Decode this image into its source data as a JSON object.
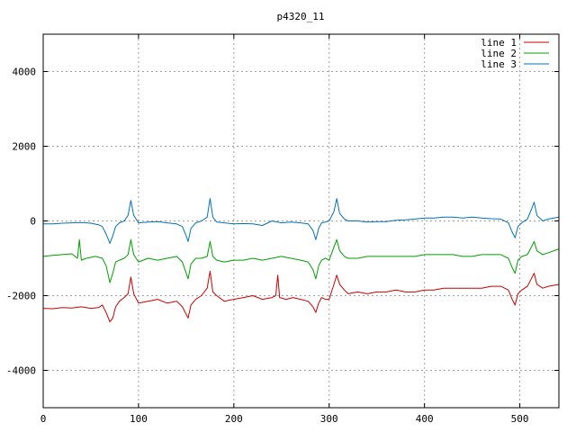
{
  "chart_data": {
    "type": "line",
    "title": "p4320_11",
    "xlabel": "",
    "ylabel": "",
    "xlim": [
      0,
      541
    ],
    "ylim": [
      -5000,
      5000
    ],
    "x_ticks": [
      0,
      100,
      200,
      300,
      400,
      500
    ],
    "y_ticks": [
      -4000,
      -2000,
      0,
      2000,
      4000
    ],
    "grid": true,
    "legend_position": "top-right",
    "series": [
      {
        "name": "line 1",
        "color": "#cc0000",
        "points": [
          [
            0,
            -2340
          ],
          [
            10,
            -2350
          ],
          [
            20,
            -2320
          ],
          [
            30,
            -2330
          ],
          [
            40,
            -2300
          ],
          [
            50,
            -2340
          ],
          [
            58,
            -2320
          ],
          [
            62,
            -2250
          ],
          [
            66,
            -2450
          ],
          [
            70,
            -2700
          ],
          [
            73,
            -2600
          ],
          [
            76,
            -2300
          ],
          [
            80,
            -2150
          ],
          [
            85,
            -2050
          ],
          [
            89,
            -1950
          ],
          [
            92,
            -1500
          ],
          [
            95,
            -1950
          ],
          [
            100,
            -2200
          ],
          [
            110,
            -2150
          ],
          [
            120,
            -2100
          ],
          [
            130,
            -2200
          ],
          [
            140,
            -2150
          ],
          [
            146,
            -2300
          ],
          [
            150,
            -2500
          ],
          [
            152,
            -2600
          ],
          [
            155,
            -2250
          ],
          [
            160,
            -2100
          ],
          [
            166,
            -2000
          ],
          [
            172,
            -1800
          ],
          [
            175,
            -1350
          ],
          [
            178,
            -1900
          ],
          [
            182,
            -2000
          ],
          [
            190,
            -2150
          ],
          [
            200,
            -2100
          ],
          [
            210,
            -2050
          ],
          [
            220,
            -2000
          ],
          [
            230,
            -2100
          ],
          [
            240,
            -2050
          ],
          [
            244,
            -2000
          ],
          [
            246,
            -1450
          ],
          [
            248,
            -2050
          ],
          [
            255,
            -2100
          ],
          [
            262,
            -2050
          ],
          [
            270,
            -2100
          ],
          [
            278,
            -2150
          ],
          [
            283,
            -2300
          ],
          [
            286,
            -2450
          ],
          [
            289,
            -2200
          ],
          [
            292,
            -2050
          ],
          [
            296,
            -2100
          ],
          [
            300,
            -2100
          ],
          [
            305,
            -1700
          ],
          [
            308,
            -1450
          ],
          [
            311,
            -1700
          ],
          [
            316,
            -1850
          ],
          [
            320,
            -1950
          ],
          [
            330,
            -1900
          ],
          [
            340,
            -1950
          ],
          [
            350,
            -1900
          ],
          [
            360,
            -1900
          ],
          [
            370,
            -1850
          ],
          [
            380,
            -1900
          ],
          [
            390,
            -1900
          ],
          [
            400,
            -1850
          ],
          [
            410,
            -1850
          ],
          [
            420,
            -1800
          ],
          [
            430,
            -1800
          ],
          [
            440,
            -1800
          ],
          [
            450,
            -1800
          ],
          [
            460,
            -1800
          ],
          [
            470,
            -1750
          ],
          [
            480,
            -1750
          ],
          [
            488,
            -1850
          ],
          [
            492,
            -2100
          ],
          [
            495,
            -2250
          ],
          [
            498,
            -1950
          ],
          [
            502,
            -1850
          ],
          [
            508,
            -1750
          ],
          [
            512,
            -1550
          ],
          [
            515,
            -1400
          ],
          [
            518,
            -1700
          ],
          [
            524,
            -1800
          ],
          [
            530,
            -1750
          ],
          [
            541,
            -1700
          ]
        ]
      },
      {
        "name": "line 2",
        "color": "#00a000",
        "points": [
          [
            0,
            -950
          ],
          [
            10,
            -920
          ],
          [
            20,
            -900
          ],
          [
            30,
            -880
          ],
          [
            36,
            -1000
          ],
          [
            38,
            -500
          ],
          [
            40,
            -1050
          ],
          [
            45,
            -1000
          ],
          [
            55,
            -950
          ],
          [
            62,
            -1000
          ],
          [
            66,
            -1200
          ],
          [
            70,
            -1650
          ],
          [
            73,
            -1400
          ],
          [
            76,
            -1100
          ],
          [
            80,
            -1050
          ],
          [
            85,
            -1000
          ],
          [
            89,
            -900
          ],
          [
            92,
            -500
          ],
          [
            95,
            -900
          ],
          [
            100,
            -1100
          ],
          [
            110,
            -1000
          ],
          [
            120,
            -1050
          ],
          [
            130,
            -1000
          ],
          [
            140,
            -950
          ],
          [
            146,
            -1100
          ],
          [
            150,
            -1400
          ],
          [
            152,
            -1550
          ],
          [
            155,
            -1150
          ],
          [
            160,
            -1000
          ],
          [
            166,
            -1000
          ],
          [
            172,
            -950
          ],
          [
            175,
            -550
          ],
          [
            178,
            -950
          ],
          [
            182,
            -1050
          ],
          [
            190,
            -1100
          ],
          [
            200,
            -1050
          ],
          [
            210,
            -1050
          ],
          [
            220,
            -1000
          ],
          [
            230,
            -1050
          ],
          [
            240,
            -1000
          ],
          [
            250,
            -950
          ],
          [
            260,
            -1000
          ],
          [
            270,
            -1050
          ],
          [
            278,
            -1100
          ],
          [
            283,
            -1300
          ],
          [
            286,
            -1550
          ],
          [
            289,
            -1200
          ],
          [
            292,
            -1050
          ],
          [
            296,
            -1000
          ],
          [
            300,
            -1050
          ],
          [
            305,
            -700
          ],
          [
            308,
            -500
          ],
          [
            311,
            -800
          ],
          [
            316,
            -950
          ],
          [
            320,
            -1000
          ],
          [
            330,
            -1000
          ],
          [
            340,
            -950
          ],
          [
            350,
            -950
          ],
          [
            360,
            -950
          ],
          [
            370,
            -950
          ],
          [
            380,
            -950
          ],
          [
            390,
            -950
          ],
          [
            400,
            -900
          ],
          [
            410,
            -900
          ],
          [
            420,
            -900
          ],
          [
            430,
            -900
          ],
          [
            440,
            -950
          ],
          [
            450,
            -950
          ],
          [
            460,
            -900
          ],
          [
            470,
            -900
          ],
          [
            480,
            -900
          ],
          [
            488,
            -1000
          ],
          [
            492,
            -1250
          ],
          [
            495,
            -1400
          ],
          [
            498,
            -1050
          ],
          [
            502,
            -950
          ],
          [
            508,
            -900
          ],
          [
            512,
            -700
          ],
          [
            515,
            -550
          ],
          [
            518,
            -800
          ],
          [
            524,
            -900
          ],
          [
            530,
            -850
          ],
          [
            541,
            -750
          ]
        ]
      },
      {
        "name": "line 3",
        "color": "#0072bd",
        "points": [
          [
            0,
            -80
          ],
          [
            10,
            -80
          ],
          [
            20,
            -60
          ],
          [
            30,
            -50
          ],
          [
            40,
            -40
          ],
          [
            50,
            -60
          ],
          [
            58,
            -100
          ],
          [
            62,
            -150
          ],
          [
            66,
            -350
          ],
          [
            70,
            -600
          ],
          [
            73,
            -400
          ],
          [
            76,
            -150
          ],
          [
            80,
            -50
          ],
          [
            85,
            0
          ],
          [
            89,
            150
          ],
          [
            92,
            550
          ],
          [
            95,
            150
          ],
          [
            100,
            -50
          ],
          [
            110,
            -30
          ],
          [
            120,
            -20
          ],
          [
            130,
            -50
          ],
          [
            140,
            -80
          ],
          [
            146,
            -150
          ],
          [
            150,
            -400
          ],
          [
            152,
            -550
          ],
          [
            155,
            -200
          ],
          [
            160,
            -50
          ],
          [
            166,
            0
          ],
          [
            172,
            100
          ],
          [
            175,
            600
          ],
          [
            178,
            100
          ],
          [
            182,
            -30
          ],
          [
            190,
            -50
          ],
          [
            200,
            -80
          ],
          [
            210,
            -70
          ],
          [
            220,
            -80
          ],
          [
            230,
            -120
          ],
          [
            240,
            0
          ],
          [
            250,
            -50
          ],
          [
            260,
            -30
          ],
          [
            270,
            -50
          ],
          [
            278,
            -80
          ],
          [
            283,
            -250
          ],
          [
            286,
            -500
          ],
          [
            289,
            -200
          ],
          [
            292,
            -50
          ],
          [
            296,
            -30
          ],
          [
            300,
            0
          ],
          [
            305,
            250
          ],
          [
            308,
            600
          ],
          [
            311,
            200
          ],
          [
            316,
            50
          ],
          [
            320,
            0
          ],
          [
            330,
            0
          ],
          [
            340,
            -30
          ],
          [
            350,
            -20
          ],
          [
            360,
            -20
          ],
          [
            370,
            20
          ],
          [
            380,
            30
          ],
          [
            390,
            50
          ],
          [
            400,
            80
          ],
          [
            410,
            80
          ],
          [
            420,
            100
          ],
          [
            430,
            100
          ],
          [
            440,
            80
          ],
          [
            450,
            100
          ],
          [
            460,
            80
          ],
          [
            470,
            60
          ],
          [
            480,
            50
          ],
          [
            488,
            -50
          ],
          [
            492,
            -300
          ],
          [
            495,
            -450
          ],
          [
            498,
            -150
          ],
          [
            502,
            -50
          ],
          [
            508,
            50
          ],
          [
            512,
            300
          ],
          [
            515,
            500
          ],
          [
            518,
            150
          ],
          [
            524,
            0
          ],
          [
            530,
            50
          ],
          [
            541,
            100
          ]
        ]
      }
    ]
  }
}
